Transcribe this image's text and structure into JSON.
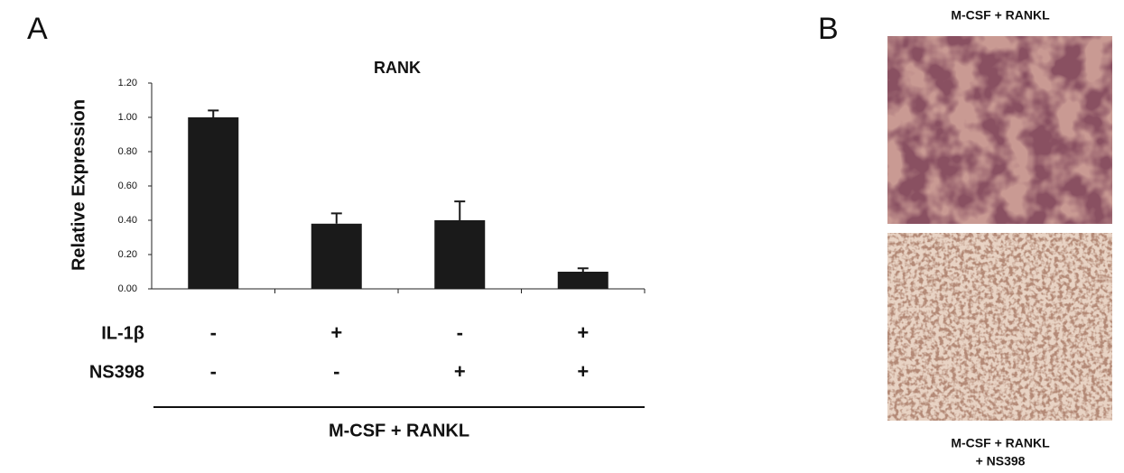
{
  "panel_a_label": "A",
  "chart_data": {
    "type": "bar",
    "title": "RANK",
    "y_label": "Relative Expression",
    "categories": [
      null,
      null,
      null,
      null
    ],
    "values": [
      1.0,
      0.38,
      0.4,
      0.1
    ],
    "errors": [
      0.04,
      0.06,
      0.11,
      0.02
    ],
    "color": "#1a1a1a",
    "ylim": [
      0,
      1.2
    ],
    "yticks": [
      {
        "value": 0,
        "label": "0.00"
      },
      {
        "value": 0.2,
        "label": "0.20"
      },
      {
        "value": 0.4,
        "label": "0.40"
      },
      {
        "value": 0.6,
        "label": "0.60"
      },
      {
        "value": 0.8,
        "label": "0.80"
      },
      {
        "value": 1.0,
        "label": "1.00"
      },
      {
        "value": 1.2,
        "label": "1.20"
      }
    ],
    "grid": false,
    "treatments": [
      {
        "label": "IL-1β",
        "marks": [
          "-",
          "+",
          "-",
          "+"
        ]
      },
      {
        "label": "NS398",
        "marks": [
          "-",
          "-",
          "+",
          "+"
        ]
      }
    ],
    "group_label": "M-CSF + RANKL"
  },
  "panel_b": {
    "label": "B",
    "top_caption": "M-CSF + RANKL",
    "bottom_caption": [
      "M-CSF + RANKL",
      "+ NS398"
    ]
  }
}
